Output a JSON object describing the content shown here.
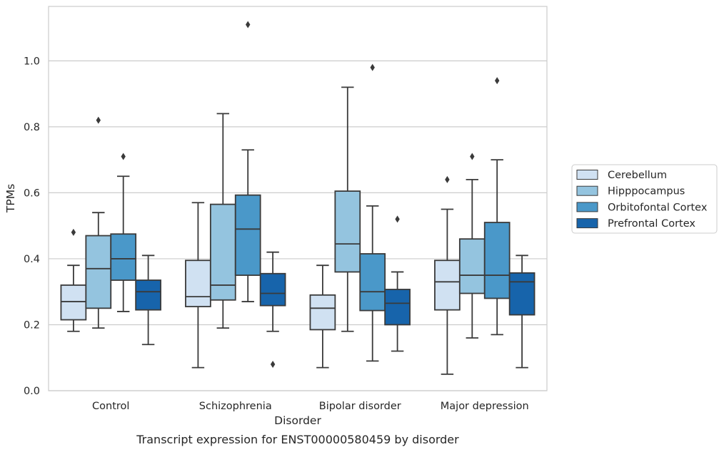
{
  "chart_data": {
    "type": "box",
    "title": "",
    "caption": "Transcript expression for ENST00000580459 by disorder",
    "xlabel": "Disorder",
    "ylabel": "TPMs",
    "ylim": [
      0.0,
      1.165
    ],
    "yticks": [
      0.0,
      0.2,
      0.4,
      0.6,
      0.8,
      1.0
    ],
    "ytick_labels": [
      "0.0",
      "0.2",
      "0.4",
      "0.6",
      "0.8",
      "1.0"
    ],
    "grid": true,
    "legend_position": "right",
    "categories": [
      "Control",
      "Schizophrenia",
      "Bipolar disorder",
      "Major depression"
    ],
    "series": [
      {
        "name": "Cerebellum",
        "color": "#d0e1f2",
        "boxes": [
          {
            "whisker_low": 0.18,
            "q1": 0.215,
            "median": 0.27,
            "q3": 0.32,
            "whisker_high": 0.38,
            "outliers": [
              0.48
            ]
          },
          {
            "whisker_low": 0.07,
            "q1": 0.255,
            "median": 0.285,
            "q3": 0.395,
            "whisker_high": 0.57,
            "outliers": []
          },
          {
            "whisker_low": 0.07,
            "q1": 0.185,
            "median": 0.25,
            "q3": 0.29,
            "whisker_high": 0.38,
            "outliers": []
          },
          {
            "whisker_low": 0.05,
            "q1": 0.245,
            "median": 0.33,
            "q3": 0.395,
            "whisker_high": 0.55,
            "outliers": [
              0.64
            ]
          }
        ]
      },
      {
        "name": "Hipppocampus",
        "color": "#94c4df",
        "boxes": [
          {
            "whisker_low": 0.19,
            "q1": 0.25,
            "median": 0.37,
            "q3": 0.47,
            "whisker_high": 0.54,
            "outliers": [
              0.82
            ]
          },
          {
            "whisker_low": 0.19,
            "q1": 0.275,
            "median": 0.32,
            "q3": 0.565,
            "whisker_high": 0.84,
            "outliers": []
          },
          {
            "whisker_low": 0.18,
            "q1": 0.36,
            "median": 0.445,
            "q3": 0.605,
            "whisker_high": 0.92,
            "outliers": []
          },
          {
            "whisker_low": 0.16,
            "q1": 0.295,
            "median": 0.35,
            "q3": 0.46,
            "whisker_high": 0.64,
            "outliers": [
              0.71
            ]
          }
        ]
      },
      {
        "name": "Orbitofontal Cortex",
        "color": "#4a98c9",
        "boxes": [
          {
            "whisker_low": 0.24,
            "q1": 0.335,
            "median": 0.4,
            "q3": 0.475,
            "whisker_high": 0.65,
            "outliers": [
              0.71
            ]
          },
          {
            "whisker_low": 0.27,
            "q1": 0.35,
            "median": 0.49,
            "q3": 0.593,
            "whisker_high": 0.73,
            "outliers": [
              1.11
            ]
          },
          {
            "whisker_low": 0.09,
            "q1": 0.243,
            "median": 0.3,
            "q3": 0.415,
            "whisker_high": 0.56,
            "outliers": [
              0.98
            ]
          },
          {
            "whisker_low": 0.17,
            "q1": 0.28,
            "median": 0.35,
            "q3": 0.51,
            "whisker_high": 0.7,
            "outliers": [
              0.94
            ]
          }
        ]
      },
      {
        "name": "Prefrontal Cortex",
        "color": "#1764ab",
        "boxes": [
          {
            "whisker_low": 0.14,
            "q1": 0.245,
            "median": 0.3,
            "q3": 0.335,
            "whisker_high": 0.41,
            "outliers": []
          },
          {
            "whisker_low": 0.18,
            "q1": 0.258,
            "median": 0.295,
            "q3": 0.355,
            "whisker_high": 0.42,
            "outliers": [
              0.08
            ]
          },
          {
            "whisker_low": 0.12,
            "q1": 0.2,
            "median": 0.265,
            "q3": 0.307,
            "whisker_high": 0.36,
            "outliers": [
              0.52
            ]
          },
          {
            "whisker_low": 0.07,
            "q1": 0.23,
            "median": 0.33,
            "q3": 0.357,
            "whisker_high": 0.41,
            "outliers": []
          }
        ]
      }
    ]
  }
}
